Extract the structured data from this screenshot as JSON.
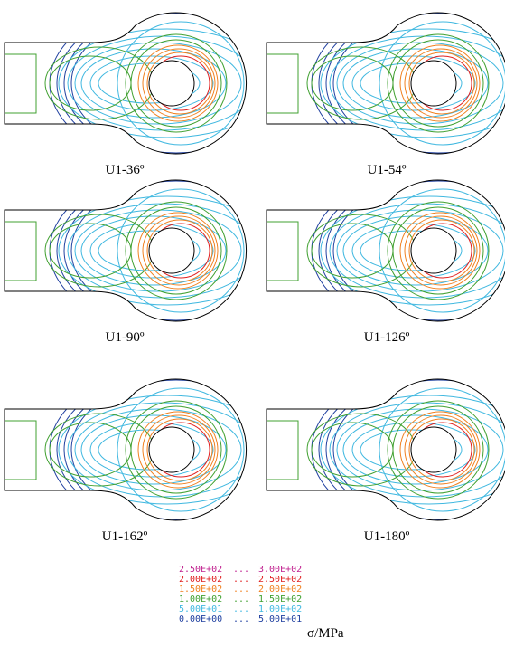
{
  "panels": [
    {
      "label": "U1-36º"
    },
    {
      "label": "U1-54º"
    },
    {
      "label": "U1-90º"
    },
    {
      "label": "U1-126º"
    },
    {
      "label": "U1-162º"
    },
    {
      "label": "U1-180º"
    }
  ],
  "legend": {
    "rows": [
      {
        "from": "2.50E+02",
        "sep": "...",
        "to": "3.00E+02",
        "color": "#c0208f"
      },
      {
        "from": "2.00E+02",
        "sep": "...",
        "to": "2.50E+02",
        "color": "#e02020"
      },
      {
        "from": "1.50E+02",
        "sep": "...",
        "to": "2.00E+02",
        "color": "#f08020"
      },
      {
        "from": "1.00E+02",
        "sep": "...",
        "to": "1.50E+02",
        "color": "#40a030"
      },
      {
        "from": "5.00E+01",
        "sep": "...",
        "to": "1.00E+02",
        "color": "#40b8e0"
      },
      {
        "from": "0.00E+00",
        "sep": "...",
        "to": "5.00E+01",
        "color": "#2040a0"
      }
    ],
    "unit": "σ/MPa"
  }
}
